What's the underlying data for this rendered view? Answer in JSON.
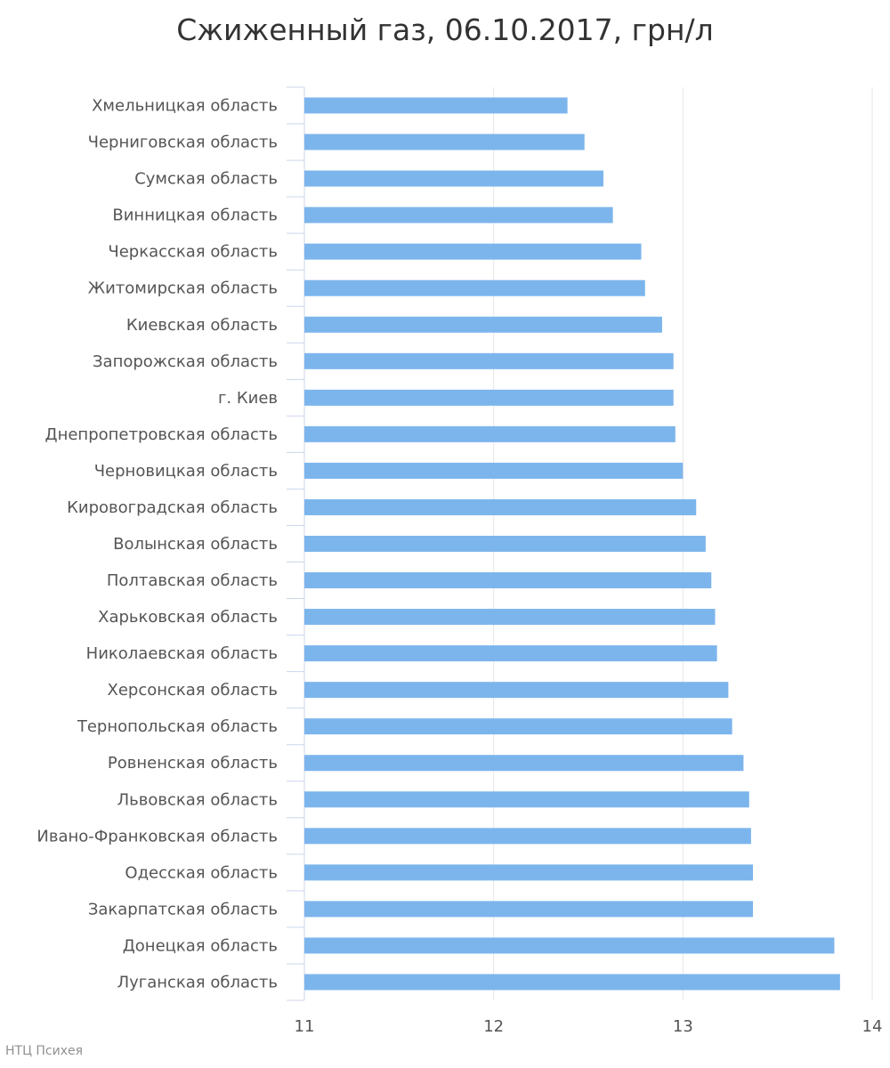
{
  "chart_data": {
    "type": "bar",
    "orientation": "horizontal",
    "title": "Сжиженный газ, 06.10.2017, грн/л",
    "credit": "НТЦ Психея",
    "xlabel": "",
    "ylabel": "",
    "xlim": [
      11,
      14
    ],
    "xticks": [
      "11",
      "12",
      "13",
      "14"
    ],
    "grid": true,
    "color": "#7cb5ec",
    "categories": [
      "Хмельницкая область",
      "Черниговская область",
      "Сумская область",
      "Винницкая область",
      "Черкасская область",
      "Житомирская область",
      "Киевская область",
      "Запорожская область",
      "г. Киев",
      "Днепропетровская область",
      "Черновицкая область",
      "Кировоградская область",
      "Волынская область",
      "Полтавская область",
      "Харьковская область",
      "Николаевская область",
      "Херсонская область",
      "Тернопольская область",
      "Ровненская область",
      "Львовская область",
      "Ивано-Франковская область",
      "Одесская область",
      "Закарпатская область",
      "Донецкая область",
      "Луганская область"
    ],
    "values": [
      12.39,
      12.48,
      12.58,
      12.63,
      12.78,
      12.8,
      12.89,
      12.95,
      12.95,
      12.96,
      13.0,
      13.07,
      13.12,
      13.15,
      13.17,
      13.18,
      13.24,
      13.26,
      13.32,
      13.35,
      13.36,
      13.37,
      13.37,
      13.8,
      13.83
    ]
  }
}
